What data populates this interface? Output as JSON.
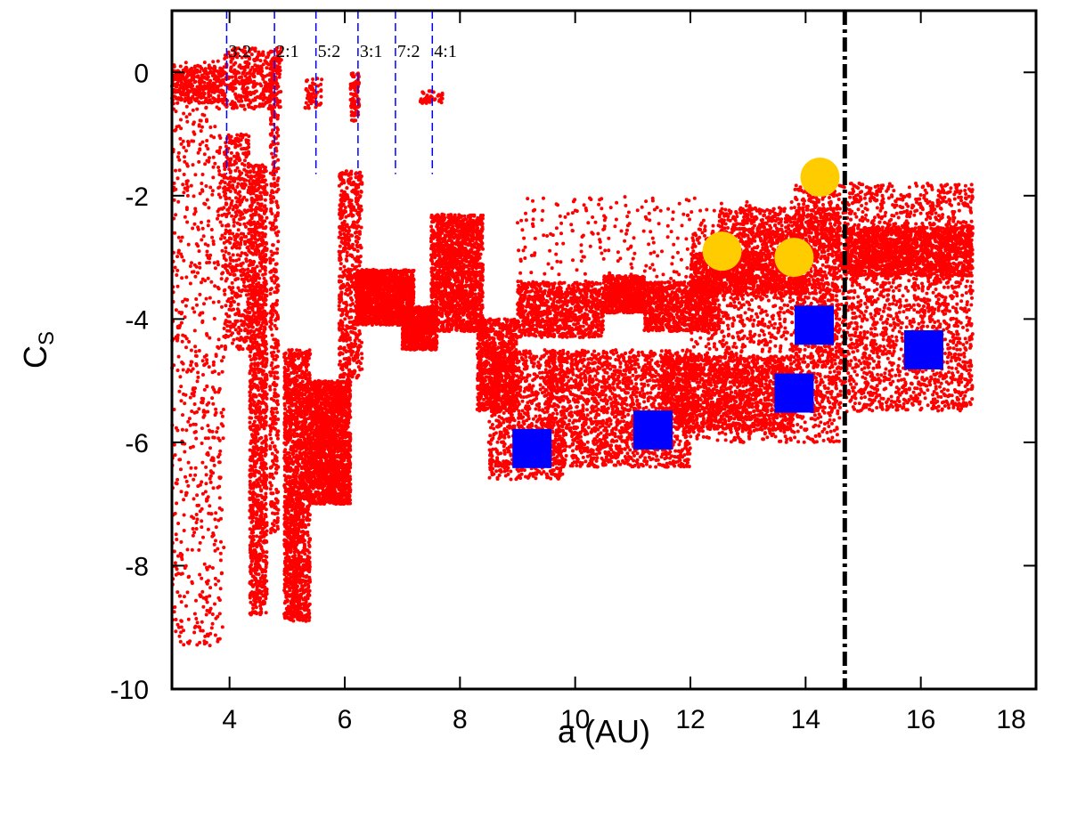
{
  "chart_data": {
    "type": "scatter",
    "xlabel": "a (AU)",
    "ylabel": "C",
    "ylabel_subscript": "S",
    "xlim": [
      3,
      18
    ],
    "ylim": [
      -10,
      1
    ],
    "xticks": [
      4,
      6,
      8,
      10,
      12,
      14,
      16,
      18
    ],
    "yticks": [
      0,
      -2,
      -4,
      -6,
      -8,
      -10
    ],
    "grid": false,
    "legend": "none",
    "colors": {
      "scatter": "#ff0000",
      "squares": "#0000ff",
      "circles": "#ffcc00",
      "resonance_lines": "#0000ff",
      "threshold_line": "#000000"
    },
    "resonances": [
      {
        "label": "3:2",
        "a": 3.95
      },
      {
        "label": "2:1",
        "a": 4.78
      },
      {
        "label": "5:2",
        "a": 5.5
      },
      {
        "label": "3:1",
        "a": 6.23
      },
      {
        "label": "7:2",
        "a": 6.88
      },
      {
        "label": "4:1",
        "a": 7.52
      }
    ],
    "threshold_a": 14.68,
    "square_series": {
      "name": "blue squares",
      "points": [
        {
          "a": 9.25,
          "cs": -6.1
        },
        {
          "a": 11.35,
          "cs": -5.8
        },
        {
          "a": 13.8,
          "cs": -5.2
        },
        {
          "a": 14.15,
          "cs": -4.1
        },
        {
          "a": 16.05,
          "cs": -4.5
        }
      ]
    },
    "circle_series": {
      "name": "yellow circles",
      "points": [
        {
          "a": 12.55,
          "cs": -2.9
        },
        {
          "a": 13.8,
          "cs": -3.0
        },
        {
          "a": 14.25,
          "cs": -1.7
        }
      ]
    },
    "scatter_series": {
      "name": "red points",
      "clusters": [
        {
          "x": [
            3.0,
            3.9
          ],
          "y": [
            -9.3,
            0.2
          ],
          "n": 700
        },
        {
          "x": [
            3.0,
            3.9
          ],
          "y": [
            -0.5,
            0.1
          ],
          "n": 350
        },
        {
          "x": [
            3.9,
            4.35
          ],
          "y": [
            -4.5,
            -1.0
          ],
          "n": 500
        },
        {
          "x": [
            4.35,
            4.65
          ],
          "y": [
            -8.8,
            -1.5
          ],
          "n": 1300
        },
        {
          "x": [
            4.7,
            4.85
          ],
          "y": [
            -7.5,
            0.3
          ],
          "n": 400
        },
        {
          "x": [
            4.95,
            5.4
          ],
          "y": [
            -8.9,
            -4.5
          ],
          "n": 1600
        },
        {
          "x": [
            5.4,
            6.1
          ],
          "y": [
            -7.0,
            -5.0
          ],
          "n": 1800
        },
        {
          "x": [
            5.9,
            6.3
          ],
          "y": [
            -5.0,
            -1.6
          ],
          "n": 600
        },
        {
          "x": [
            3.9,
            4.9
          ],
          "y": [
            -0.6,
            0.4
          ],
          "n": 400
        },
        {
          "x": [
            5.3,
            5.6
          ],
          "y": [
            -0.6,
            -0.1
          ],
          "n": 60
        },
        {
          "x": [
            6.1,
            6.25
          ],
          "y": [
            -0.8,
            0.0
          ],
          "n": 100
        },
        {
          "x": [
            7.3,
            7.7
          ],
          "y": [
            -0.5,
            -0.3
          ],
          "n": 50
        },
        {
          "x": [
            6.2,
            7.2
          ],
          "y": [
            -4.1,
            -3.2
          ],
          "n": 1500
        },
        {
          "x": [
            7.0,
            7.6
          ],
          "y": [
            -4.5,
            -3.8
          ],
          "n": 800
        },
        {
          "x": [
            7.5,
            8.4
          ],
          "y": [
            -4.2,
            -2.3
          ],
          "n": 1600
        },
        {
          "x": [
            8.3,
            9.0
          ],
          "y": [
            -5.5,
            -4.0
          ],
          "n": 900
        },
        {
          "x": [
            8.5,
            9.8
          ],
          "y": [
            -6.6,
            -4.5
          ],
          "n": 900
        },
        {
          "x": [
            9.0,
            10.5
          ],
          "y": [
            -4.3,
            -3.4
          ],
          "n": 900
        },
        {
          "x": [
            9.5,
            12.0
          ],
          "y": [
            -6.4,
            -4.5
          ],
          "n": 1800
        },
        {
          "x": [
            10.5,
            11.2
          ],
          "y": [
            -3.9,
            -3.3
          ],
          "n": 600
        },
        {
          "x": [
            11.2,
            12.5
          ],
          "y": [
            -4.2,
            -3.4
          ],
          "n": 900
        },
        {
          "x": [
            12.0,
            14.0
          ],
          "y": [
            -3.6,
            -2.9
          ],
          "n": 1000
        },
        {
          "x": [
            11.5,
            13.8
          ],
          "y": [
            -5.8,
            -4.6
          ],
          "n": 1400
        },
        {
          "x": [
            12.0,
            14.6
          ],
          "y": [
            -6.0,
            -2.5
          ],
          "n": 1500
        },
        {
          "x": [
            13.8,
            16.9
          ],
          "y": [
            -5.5,
            -1.8
          ],
          "n": 2800
        },
        {
          "x": [
            12.5,
            14.6
          ],
          "y": [
            -3.0,
            -2.2
          ],
          "n": 600
        },
        {
          "x": [
            14.7,
            16.9
          ],
          "y": [
            -3.3,
            -2.5
          ],
          "n": 1300
        },
        {
          "x": [
            9.0,
            14.6
          ],
          "y": [
            -3.5,
            -2.0
          ],
          "n": 350
        }
      ]
    }
  }
}
